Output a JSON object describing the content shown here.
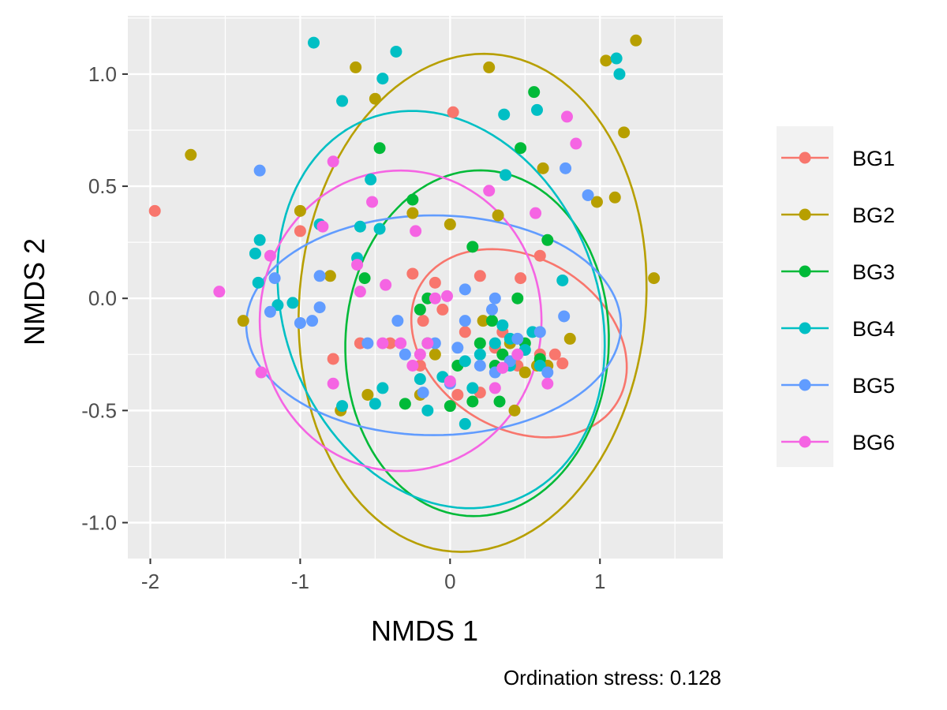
{
  "chart_data": {
    "type": "scatter",
    "title": "",
    "xlabel": "NMDS 1",
    "ylabel": "NMDS 2",
    "xlim": [
      -2.15,
      1.82
    ],
    "ylim": [
      -1.16,
      1.26
    ],
    "x_ticks": [
      -2,
      -1,
      0,
      1
    ],
    "x_tick_labels": [
      "-2",
      "-1",
      "0",
      "1"
    ],
    "y_ticks": [
      -1.0,
      -0.5,
      0.0,
      0.5,
      1.0
    ],
    "y_tick_labels": [
      "-1.0",
      "-0.5",
      "0.0",
      "0.5",
      "1.0"
    ],
    "grid": true,
    "legend_position": "right",
    "caption": "Ordination stress:  0.128",
    "series": [
      {
        "name": "BG1",
        "color": "#F8766D",
        "points": [
          [
            -1.97,
            0.39
          ],
          [
            0.02,
            0.83
          ],
          [
            -1.0,
            0.3
          ],
          [
            -0.25,
            0.11
          ],
          [
            -0.1,
            0.07
          ],
          [
            0.2,
            0.1
          ],
          [
            0.47,
            0.09
          ],
          [
            0.6,
            0.19
          ],
          [
            -0.4,
            -0.2
          ],
          [
            -0.18,
            -0.1
          ],
          [
            -0.05,
            -0.05
          ],
          [
            0.1,
            -0.15
          ],
          [
            0.3,
            -0.22
          ],
          [
            0.45,
            -0.3
          ],
          [
            0.6,
            -0.25
          ],
          [
            0.75,
            -0.29
          ],
          [
            -0.6,
            -0.2
          ],
          [
            -0.2,
            -0.3
          ],
          [
            0.05,
            -0.43
          ],
          [
            0.2,
            -0.42
          ],
          [
            -0.78,
            -0.27
          ],
          [
            0.7,
            -0.25
          ],
          [
            0.35,
            -0.15
          ]
        ]
      },
      {
        "name": "BG2",
        "color": "#B79F00",
        "points": [
          [
            -1.73,
            0.64
          ],
          [
            -0.63,
            1.03
          ],
          [
            -0.5,
            0.89
          ],
          [
            0.26,
            1.03
          ],
          [
            1.04,
            1.06
          ],
          [
            1.24,
            1.15
          ],
          [
            1.16,
            0.74
          ],
          [
            1.1,
            0.45
          ],
          [
            0.98,
            0.43
          ],
          [
            0.62,
            0.58
          ],
          [
            0.32,
            0.37
          ],
          [
            -1.0,
            0.39
          ],
          [
            -0.25,
            0.38
          ],
          [
            0.0,
            0.33
          ],
          [
            -0.8,
            0.1
          ],
          [
            -1.38,
            -0.1
          ],
          [
            -0.73,
            -0.5
          ],
          [
            -0.55,
            -0.43
          ],
          [
            -0.2,
            -0.43
          ],
          [
            0.43,
            -0.5
          ],
          [
            1.36,
            0.09
          ],
          [
            0.5,
            -0.33
          ],
          [
            0.58,
            -0.3
          ],
          [
            0.65,
            -0.3
          ],
          [
            0.4,
            -0.2
          ],
          [
            0.22,
            -0.1
          ],
          [
            -0.1,
            -0.25
          ],
          [
            0.8,
            -0.18
          ]
        ]
      },
      {
        "name": "BG3",
        "color": "#00BA38",
        "points": [
          [
            0.56,
            0.92
          ],
          [
            -0.47,
            0.67
          ],
          [
            0.47,
            0.67
          ],
          [
            -0.25,
            0.44
          ],
          [
            0.15,
            0.23
          ],
          [
            0.65,
            0.26
          ],
          [
            -0.57,
            0.09
          ],
          [
            -0.2,
            -0.05
          ],
          [
            -0.15,
            0.0
          ],
          [
            0.0,
            -0.48
          ],
          [
            0.15,
            -0.46
          ],
          [
            0.33,
            -0.46
          ],
          [
            -0.3,
            -0.47
          ],
          [
            0.45,
            0.0
          ],
          [
            0.28,
            -0.1
          ],
          [
            0.35,
            -0.25
          ],
          [
            0.2,
            -0.2
          ],
          [
            0.6,
            -0.27
          ],
          [
            -0.15,
            -0.2
          ],
          [
            0.05,
            -0.3
          ],
          [
            0.5,
            -0.2
          ],
          [
            0.3,
            -0.3
          ]
        ]
      },
      {
        "name": "BG4",
        "color": "#00BFC4",
        "points": [
          [
            -0.91,
            1.14
          ],
          [
            -0.36,
            1.1
          ],
          [
            -0.45,
            0.98
          ],
          [
            -0.72,
            0.88
          ],
          [
            0.36,
            0.82
          ],
          [
            0.58,
            0.84
          ],
          [
            1.11,
            1.07
          ],
          [
            1.13,
            1.0
          ],
          [
            0.37,
            0.55
          ],
          [
            -0.53,
            0.53
          ],
          [
            -1.27,
            0.26
          ],
          [
            -0.6,
            0.32
          ],
          [
            -0.47,
            0.31
          ],
          [
            -0.87,
            0.33
          ],
          [
            -1.3,
            0.2
          ],
          [
            -1.28,
            0.07
          ],
          [
            -1.05,
            -0.02
          ],
          [
            -1.15,
            -0.03
          ],
          [
            -0.62,
            0.18
          ],
          [
            -0.45,
            -0.4
          ],
          [
            -0.5,
            -0.47
          ],
          [
            -0.15,
            -0.5
          ],
          [
            -0.2,
            -0.36
          ],
          [
            -0.72,
            -0.48
          ],
          [
            0.1,
            -0.56
          ],
          [
            0.4,
            -0.3
          ],
          [
            0.6,
            -0.3
          ],
          [
            0.75,
            0.08
          ],
          [
            0.3,
            -0.2
          ],
          [
            0.5,
            -0.23
          ],
          [
            0.2,
            -0.25
          ],
          [
            -0.05,
            -0.35
          ],
          [
            0.1,
            -0.28
          ],
          [
            0.4,
            -0.18
          ],
          [
            0.55,
            -0.15
          ],
          [
            0.35,
            -0.12
          ],
          [
            0.15,
            -0.4
          ]
        ]
      },
      {
        "name": "BG5",
        "color": "#619CFF",
        "points": [
          [
            -1.27,
            0.57
          ],
          [
            0.77,
            0.58
          ],
          [
            0.92,
            0.46
          ],
          [
            -1.17,
            0.09
          ],
          [
            -0.87,
            0.1
          ],
          [
            -0.92,
            -0.1
          ],
          [
            -1.2,
            -0.06
          ],
          [
            -1.0,
            -0.11
          ],
          [
            -0.87,
            -0.04
          ],
          [
            -0.55,
            -0.2
          ],
          [
            -0.3,
            -0.25
          ],
          [
            0.1,
            0.04
          ],
          [
            0.3,
            0.0
          ],
          [
            0.28,
            -0.05
          ],
          [
            -0.1,
            -0.2
          ],
          [
            0.05,
            -0.22
          ],
          [
            0.3,
            -0.33
          ],
          [
            0.45,
            -0.18
          ],
          [
            0.6,
            -0.15
          ],
          [
            -0.18,
            -0.42
          ],
          [
            0.0,
            -0.38
          ],
          [
            0.2,
            -0.3
          ],
          [
            0.65,
            -0.33
          ],
          [
            0.76,
            -0.08
          ],
          [
            0.4,
            -0.28
          ],
          [
            -0.35,
            -0.1
          ],
          [
            0.1,
            -0.1
          ]
        ]
      },
      {
        "name": "BG6",
        "color": "#F564E3",
        "points": [
          [
            -0.78,
            0.61
          ],
          [
            0.78,
            0.81
          ],
          [
            0.84,
            0.69
          ],
          [
            0.26,
            0.48
          ],
          [
            -0.52,
            0.43
          ],
          [
            0.57,
            0.38
          ],
          [
            -0.23,
            0.3
          ],
          [
            -1.2,
            0.19
          ],
          [
            -0.85,
            0.32
          ],
          [
            -0.62,
            0.15
          ],
          [
            -0.6,
            0.03
          ],
          [
            -0.43,
            0.06
          ],
          [
            -1.54,
            0.03
          ],
          [
            -1.26,
            -0.33
          ],
          [
            -0.78,
            -0.38
          ],
          [
            -0.45,
            -0.2
          ],
          [
            -0.33,
            -0.2
          ],
          [
            -0.2,
            -0.25
          ],
          [
            -0.25,
            -0.3
          ],
          [
            -0.15,
            -0.2
          ],
          [
            0.0,
            -0.37
          ],
          [
            0.3,
            -0.4
          ],
          [
            0.35,
            -0.31
          ],
          [
            0.65,
            -0.38
          ],
          [
            0.45,
            -0.25
          ],
          [
            -0.02,
            0.01
          ],
          [
            -0.1,
            0.0
          ]
        ]
      }
    ],
    "ellipses": [
      {
        "name": "BG1",
        "color": "#F8766D",
        "cx": 0.46,
        "cy": -0.2,
        "rx": 0.73,
        "ry": 0.4,
        "angle_deg": -12
      },
      {
        "name": "BG2",
        "color": "#B79F00",
        "cx": 0.15,
        "cy": -0.02,
        "rx": 1.18,
        "ry": 1.09,
        "angle_deg": 28
      },
      {
        "name": "BG3",
        "color": "#00BA38",
        "cx": 0.18,
        "cy": -0.2,
        "rx": 0.88,
        "ry": 0.77,
        "angle_deg": 5
      },
      {
        "name": "BG4",
        "color": "#00BFC4",
        "cx": -0.06,
        "cy": -0.05,
        "rx": 1.12,
        "ry": 0.85,
        "angle_deg": -20
      },
      {
        "name": "BG5",
        "color": "#619CFF",
        "cx": -0.11,
        "cy": -0.12,
        "rx": 1.25,
        "ry": 0.49,
        "angle_deg": 0
      },
      {
        "name": "BG6",
        "color": "#F564E3",
        "cx": -0.33,
        "cy": -0.1,
        "rx": 0.94,
        "ry": 0.67,
        "angle_deg": 0
      }
    ]
  }
}
